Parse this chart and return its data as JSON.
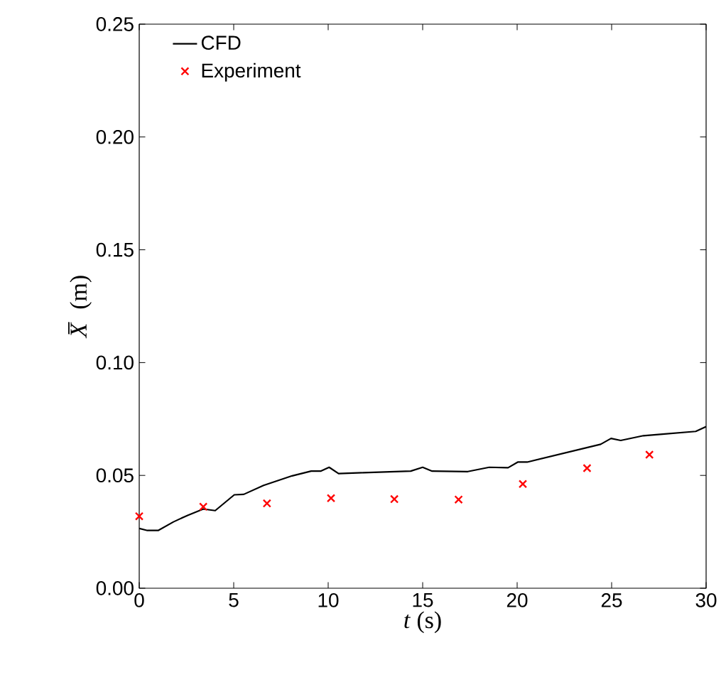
{
  "chart_data": {
    "type": "line",
    "xlabel": "*t* (s)",
    "ylabel": "*X̅* (m)",
    "xlim": [
      0,
      30
    ],
    "ylim": [
      0,
      0.25
    ],
    "xticks": [
      0,
      5,
      10,
      15,
      20,
      25,
      30
    ],
    "yticks": [
      {
        "value": 0,
        "label": "0.00"
      },
      {
        "value": 0.05,
        "label": "0.05"
      },
      {
        "value": 0.1,
        "label": "0.10"
      },
      {
        "value": 0.15,
        "label": "0.15"
      },
      {
        "value": 0.2,
        "label": "0.20"
      },
      {
        "value": 0.25,
        "label": "0.25"
      }
    ],
    "legend": "top left",
    "grid": false,
    "series": [
      {
        "name": "CFD",
        "color": "#000000",
        "marker": "none",
        "line_style": "solid",
        "x": [
          0,
          0.43,
          1.0,
          1.81,
          2.56,
          3.39,
          4.02,
          5.03,
          5.53,
          6.58,
          8.09,
          9.1,
          9.6,
          10.05,
          10.55,
          11.86,
          14.37,
          15.0,
          15.5,
          17.39,
          18.52,
          19.52,
          20.03,
          20.53,
          24.42,
          24.97,
          25.48,
          26.68,
          27.69,
          29.45,
          30
        ],
        "values": [
          0.0265,
          0.0256,
          0.0256,
          0.0294,
          0.0323,
          0.0351,
          0.0344,
          0.0414,
          0.0416,
          0.0456,
          0.0498,
          0.0519,
          0.0519,
          0.0536,
          0.0508,
          0.0512,
          0.0519,
          0.0536,
          0.0519,
          0.0517,
          0.0536,
          0.0534,
          0.0559,
          0.0559,
          0.0638,
          0.0664,
          0.0655,
          0.0676,
          0.0683,
          0.0695,
          0.0716
        ]
      },
      {
        "name": "Experiment",
        "type": "scatter",
        "color": "#ff0000",
        "marker": "cross",
        "x": [
          0,
          3.39,
          6.76,
          10.15,
          13.5,
          16.9,
          20.3,
          23.7,
          27.0
        ],
        "values": [
          0.0319,
          0.0361,
          0.0376,
          0.0399,
          0.0395,
          0.0393,
          0.0462,
          0.0532,
          0.0592
        ]
      }
    ]
  }
}
